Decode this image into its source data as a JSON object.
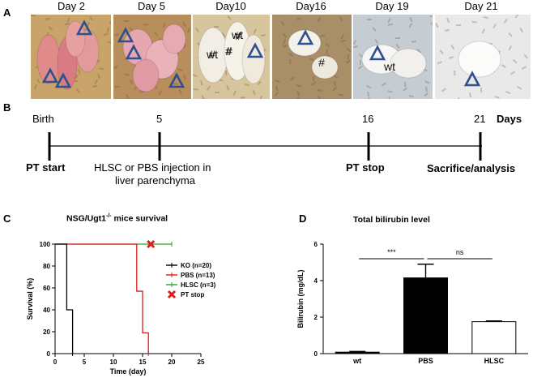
{
  "panel_a": {
    "letter": "A",
    "days": [
      {
        "label": "Day 2"
      },
      {
        "label": "Day 5"
      },
      {
        "label": "Day10",
        "marks": [
          "wt",
          "#",
          "#"
        ]
      },
      {
        "label": "Day16",
        "marks": [
          "#"
        ]
      },
      {
        "label": "Day 19",
        "marks": [
          "wt"
        ]
      },
      {
        "label": "Day 21"
      }
    ]
  },
  "panel_b": {
    "letter": "B",
    "ticks": [
      "Birth",
      "5",
      "16",
      "21"
    ],
    "unit": "Days",
    "events": {
      "pt_start": "PT start",
      "injection_line1": "HLSC or PBS injection in",
      "injection_line2": "liver parenchyma",
      "pt_stop": "PT stop",
      "sacrifice": "Sacrifice/analysis"
    }
  },
  "panel_c": {
    "letter": "C",
    "title_prefix": "NSG/Ugt1",
    "title_sup": "-/-",
    "title_suffix": " mice survival"
  },
  "panel_d": {
    "letter": "D",
    "title": "Total bilirubin level"
  },
  "chart_data": [
    {
      "type": "line",
      "title": "NSG/Ugt1-/- mice survival",
      "xlabel": "Time (day)",
      "ylabel": "Survival (%)",
      "xlim": [
        0,
        25
      ],
      "ylim": [
        0,
        100
      ],
      "xticks": [
        "0",
        "5",
        "10",
        "15",
        "20",
        "25"
      ],
      "yticks": [
        "0",
        "20",
        "40",
        "60",
        "80",
        "100"
      ],
      "legend_placement": "right",
      "series": [
        {
          "name": "KO (n=20)",
          "color": "#000000",
          "step_x": [
            0,
            2,
            2,
            3,
            3
          ],
          "step_y": [
            100,
            100,
            40,
            40,
            0
          ]
        },
        {
          "name": "PBS (n=13)",
          "color": "#e31a1c",
          "step_x": [
            0,
            14,
            14,
            15,
            15,
            16,
            16
          ],
          "step_y": [
            100,
            100,
            57,
            57,
            19,
            19,
            0
          ]
        },
        {
          "name": "HLSC (n=3)",
          "color": "#2ca02c",
          "step_x": [
            0,
            20
          ],
          "step_y": [
            100,
            100
          ]
        }
      ],
      "markers": [
        {
          "name": "PT stop",
          "x": 16,
          "y": 100,
          "symbol": "cross",
          "color": "#e31a1c"
        }
      ]
    },
    {
      "type": "bar",
      "title": "Total bilirubin level",
      "ylabel": "Bilirubin (mg/dL)",
      "ylim": [
        0,
        6
      ],
      "yticks": [
        "0",
        "2",
        "4",
        "6"
      ],
      "categories": [
        "wt",
        "PBS",
        "HLSC"
      ],
      "values": [
        0.08,
        4.15,
        1.75
      ],
      "errors": [
        0.04,
        0.75,
        0.04
      ],
      "fills": [
        "#000000",
        "#000000",
        "#ffffff"
      ],
      "significance": [
        {
          "from": "wt",
          "to": "PBS",
          "label": "***"
        },
        {
          "from": "PBS",
          "to": "HLSC",
          "label": "ns"
        }
      ]
    }
  ]
}
